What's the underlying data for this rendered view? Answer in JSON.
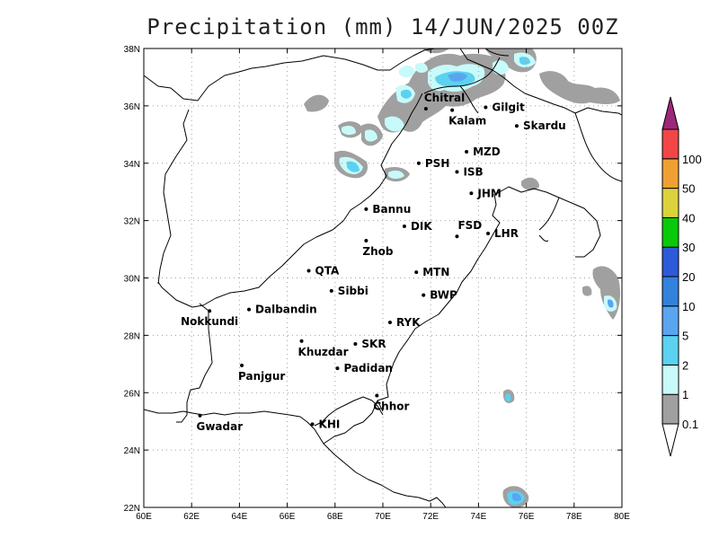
{
  "title": "Precipitation (mm) 14/JUN/2025 00Z",
  "axes": {
    "lon_ticks": [
      "60E",
      "62E",
      "64E",
      "66E",
      "68E",
      "70E",
      "72E",
      "74E",
      "76E",
      "78E",
      "80E"
    ],
    "lat_ticks": [
      "22N",
      "24N",
      "26N",
      "28N",
      "30N",
      "32N",
      "34N",
      "36N",
      "38N"
    ],
    "lon_range": [
      60,
      80
    ],
    "lat_range": [
      22,
      38
    ],
    "grid": "dotted"
  },
  "cities": [
    {
      "name": "Chitral",
      "lon": 71.8,
      "lat": 35.9,
      "label_pos": "above"
    },
    {
      "name": "Gilgit",
      "lon": 74.3,
      "lat": 35.95,
      "label_pos": "right"
    },
    {
      "name": "Kalam",
      "lon": 72.9,
      "lat": 35.85,
      "label_pos": "below"
    },
    {
      "name": "Skardu",
      "lon": 75.6,
      "lat": 35.3,
      "label_pos": "right"
    },
    {
      "name": "MZD",
      "lon": 73.5,
      "lat": 34.4,
      "label_pos": "right"
    },
    {
      "name": "PSH",
      "lon": 71.5,
      "lat": 34.0,
      "label_pos": "right"
    },
    {
      "name": "ISB",
      "lon": 73.1,
      "lat": 33.7,
      "label_pos": "right"
    },
    {
      "name": "JHM",
      "lon": 73.7,
      "lat": 32.95,
      "label_pos": "right"
    },
    {
      "name": "Bannu",
      "lon": 69.3,
      "lat": 32.4,
      "label_pos": "right"
    },
    {
      "name": "DIK",
      "lon": 70.9,
      "lat": 31.8,
      "label_pos": "right"
    },
    {
      "name": "FSD",
      "lon": 73.1,
      "lat": 31.45,
      "label_pos": "above-right"
    },
    {
      "name": "LHR",
      "lon": 74.4,
      "lat": 31.55,
      "label_pos": "right"
    },
    {
      "name": "Zhob",
      "lon": 69.3,
      "lat": 31.3,
      "label_pos": "below"
    },
    {
      "name": "QTA",
      "lon": 66.9,
      "lat": 30.25,
      "label_pos": "right"
    },
    {
      "name": "MTN",
      "lon": 71.4,
      "lat": 30.2,
      "label_pos": "right"
    },
    {
      "name": "Sibbi",
      "lon": 67.85,
      "lat": 29.55,
      "label_pos": "right"
    },
    {
      "name": "BWP",
      "lon": 71.7,
      "lat": 29.4,
      "label_pos": "right"
    },
    {
      "name": "Dalbandin",
      "lon": 64.4,
      "lat": 28.9,
      "label_pos": "right"
    },
    {
      "name": "Nokkundi",
      "lon": 62.75,
      "lat": 28.85,
      "label_pos": "below"
    },
    {
      "name": "RYK",
      "lon": 70.3,
      "lat": 28.45,
      "label_pos": "right"
    },
    {
      "name": "Khuzdar",
      "lon": 66.6,
      "lat": 27.8,
      "label_pos": "below"
    },
    {
      "name": "SKR",
      "lon": 68.85,
      "lat": 27.7,
      "label_pos": "right"
    },
    {
      "name": "Panjgur",
      "lon": 64.1,
      "lat": 26.95,
      "label_pos": "below"
    },
    {
      "name": "Padidan",
      "lon": 68.1,
      "lat": 26.85,
      "label_pos": "right"
    },
    {
      "name": "Chhor",
      "lon": 69.75,
      "lat": 25.9,
      "label_pos": "below"
    },
    {
      "name": "KHI",
      "lon": 67.05,
      "lat": 24.9,
      "label_pos": "right"
    },
    {
      "name": "Gwadar",
      "lon": 62.35,
      "lat": 25.2,
      "label_pos": "below"
    }
  ],
  "colorbar": {
    "levels": [
      "0.1",
      "1",
      "2",
      "5",
      "10",
      "20",
      "30",
      "40",
      "50",
      "100"
    ],
    "colors": [
      "#a0a0a0",
      "#c8fafa",
      "#5ad2f0",
      "#5aa5f0",
      "#3282dc",
      "#2d5ad7",
      "#0ac80a",
      "#dcd23c",
      "#f0a032",
      "#f04646"
    ],
    "top_arrow_color": "#9b2878",
    "bottom_arrow_color": "#ffffff"
  }
}
